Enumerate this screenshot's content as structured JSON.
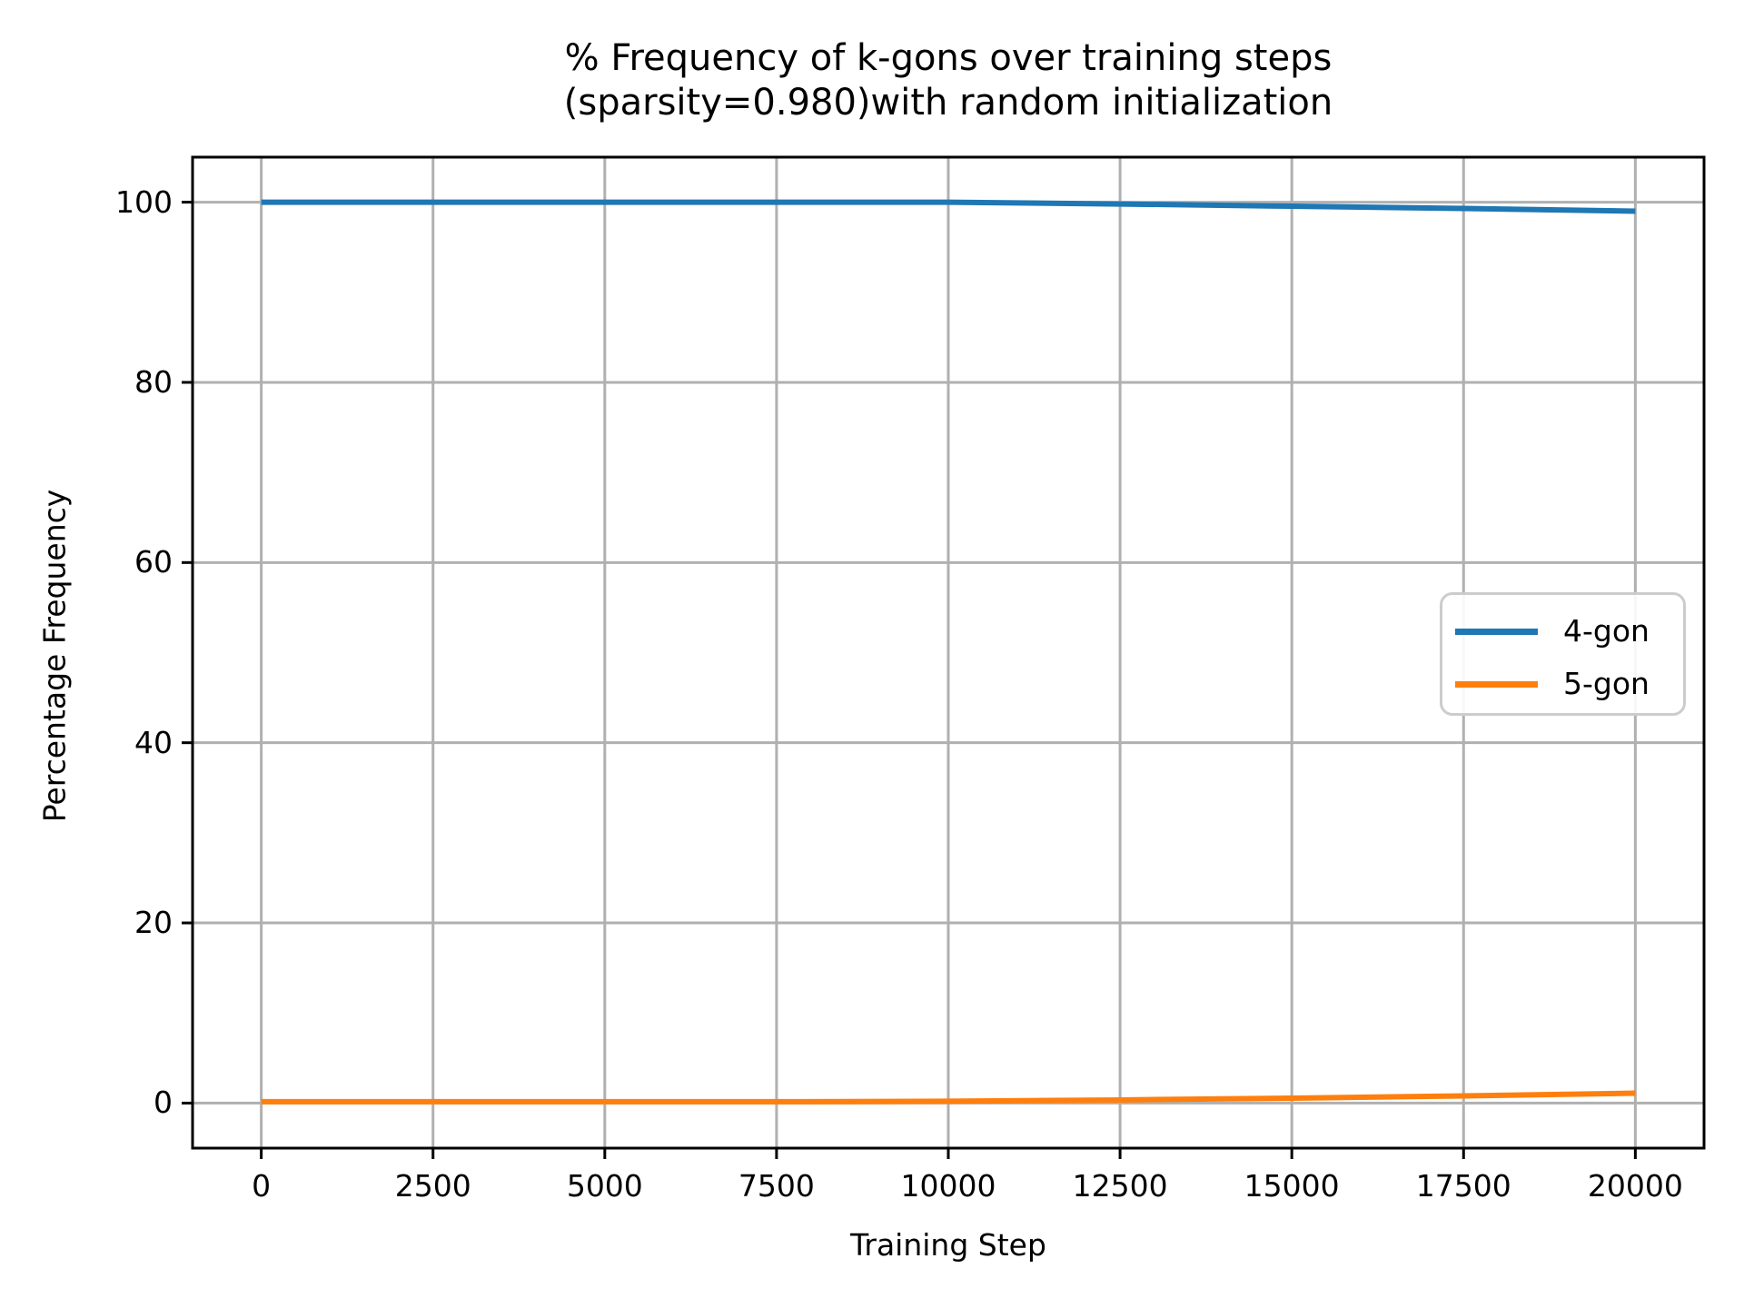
{
  "figure": {
    "title_line1": "% Frequency of k-gons over training steps",
    "title_line2": "(sparsity=0.980)with random initialization"
  },
  "axes": {
    "xlabel": "Training Step",
    "ylabel": "Percentage Frequency"
  },
  "legend": {
    "items": [
      {
        "label": "4-gon",
        "color": "#1f77b4"
      },
      {
        "label": "5-gon",
        "color": "#ff7f0e"
      }
    ]
  },
  "chart_data": {
    "type": "line",
    "title": "% Frequency of k-gons over training steps (sparsity=0.980)with random initialization",
    "xlabel": "Training Step",
    "ylabel": "Percentage Frequency",
    "x": [
      0,
      2500,
      5000,
      7500,
      10000,
      12500,
      15000,
      17500,
      20000
    ],
    "series": [
      {
        "name": "4-gon",
        "color": "#1f77b4",
        "values": [
          100,
          100,
          100,
          100,
          100,
          99.8,
          99.55,
          99.3,
          99.0
        ]
      },
      {
        "name": "5-gon",
        "color": "#ff7f0e",
        "values": [
          0.15,
          0.15,
          0.15,
          0.15,
          0.2,
          0.35,
          0.55,
          0.8,
          1.1
        ]
      }
    ],
    "x_ticks": [
      0,
      2500,
      5000,
      7500,
      10000,
      12500,
      15000,
      17500,
      20000
    ],
    "y_ticks": [
      0,
      20,
      40,
      60,
      80,
      100
    ],
    "xlim": [
      -1000,
      21000
    ],
    "ylim": [
      -5,
      105
    ],
    "grid": true,
    "grid_color": "#b0b0b0",
    "spine_color": "#000000",
    "legend_position": "center right"
  }
}
